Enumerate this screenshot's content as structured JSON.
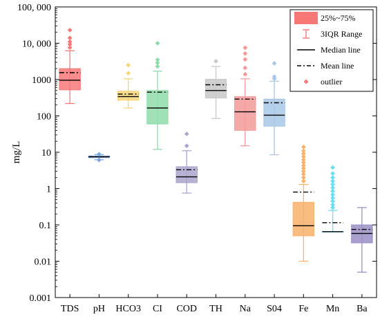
{
  "chart_data": {
    "type": "box",
    "ylabel": "mg/L",
    "yscale": "log",
    "ylim": [
      0.001,
      100000
    ],
    "yticks": [
      {
        "value": 0.001,
        "label": "0.001"
      },
      {
        "value": 0.01,
        "label": "0.01"
      },
      {
        "value": 0.1,
        "label": "0.1"
      },
      {
        "value": 1,
        "label": "1"
      },
      {
        "value": 10,
        "label": "10"
      },
      {
        "value": 100,
        "label": "100"
      },
      {
        "value": 1000,
        "label": "1000"
      },
      {
        "value": 10000,
        "label": "10, 000"
      },
      {
        "value": 100000,
        "label": "100, 000"
      }
    ],
    "legend": {
      "placement": "top-right",
      "entries": [
        {
          "kind": "box",
          "label": "25%~75%"
        },
        {
          "kind": "whisker",
          "label": "3IQR Range"
        },
        {
          "kind": "median",
          "label": "Median line"
        },
        {
          "kind": "mean",
          "label": "Mean line"
        },
        {
          "kind": "outlier",
          "label": "outlier"
        }
      ]
    },
    "series": [
      {
        "category": "TDS",
        "color": "#f87878",
        "whisker_low": 220,
        "q1": 520,
        "median": 960,
        "q3": 2000,
        "whisker_high": 6200,
        "mean": 1550,
        "outliers": [
          7600,
          9300,
          11000,
          14000,
          23000
        ]
      },
      {
        "category": "pH",
        "color": "#7fa8e0",
        "whisker_low": 6.2,
        "q1": 7.1,
        "median": 7.5,
        "q3": 7.9,
        "whisker_high": 8.6,
        "mean": 7.5,
        "outliers": [
          8.8,
          6.1
        ]
      },
      {
        "category": "HCO3",
        "color": "#f7d677",
        "whisker_low": 165,
        "q1": 270,
        "median": 340,
        "q3": 480,
        "whisker_high": 1050,
        "mean": 400,
        "outliers": [
          1500,
          2500
        ]
      },
      {
        "category": "CI",
        "color": "#8fdcaa",
        "whisker_low": 12,
        "q1": 60,
        "median": 165,
        "q3": 500,
        "whisker_high": 1700,
        "mean": 450,
        "outliers": [
          2300,
          2900,
          3500,
          10000
        ]
      },
      {
        "category": "COD",
        "color": "#aaa5cc",
        "whisker_low": 0.75,
        "q1": 1.45,
        "median": 2.1,
        "q3": 4.0,
        "whisker_high": 11,
        "mean": 3.3,
        "outliers": [
          15,
          32
        ]
      },
      {
        "category": "TH",
        "color": "#c8c8c8",
        "whisker_low": 85,
        "q1": 310,
        "median": 500,
        "q3": 1020,
        "whisker_high": 2300,
        "mean": 720,
        "outliers": [
          3200
        ]
      },
      {
        "category": "Na",
        "color": "#f59a9a",
        "whisker_low": 15,
        "q1": 40,
        "median": 130,
        "q3": 340,
        "whisker_high": 1050,
        "mean": 290,
        "outliers": [
          1400,
          2100,
          3600,
          5200,
          7500
        ]
      },
      {
        "category": "S04",
        "color": "#a8c8e6",
        "whisker_low": 8.5,
        "q1": 52,
        "median": 105,
        "q3": 290,
        "whisker_high": 900,
        "mean": 230,
        "outliers": [
          1050,
          1200,
          2800
        ]
      },
      {
        "category": "Fe",
        "color": "#f8b26c",
        "whisker_low": 0.01,
        "q1": 0.05,
        "median": 0.095,
        "q3": 0.42,
        "whisker_high": 1.3,
        "mean": 0.8,
        "outliers": [
          1.6,
          2.0,
          2.5,
          3.0,
          3.6,
          4.3,
          5.2,
          6.2,
          7.6,
          9.2,
          11,
          14
        ]
      },
      {
        "category": "Mn",
        "color": "#66e0f2",
        "whisker_low": 0.065,
        "q1": 0.065,
        "median": 0.065,
        "q3": 0.065,
        "whisker_high": 0.25,
        "mean": 0.115,
        "outliers": [
          0.3,
          0.36,
          0.45,
          0.55,
          0.68,
          0.85,
          1.05,
          1.3,
          1.6,
          2.0,
          2.6,
          3.8
        ]
      },
      {
        "category": "Ba",
        "color": "#9a8fc4",
        "whisker_low": 0.005,
        "q1": 0.032,
        "median": 0.058,
        "q3": 0.1,
        "whisker_high": 0.3,
        "mean": 0.075,
        "outliers": []
      }
    ]
  }
}
